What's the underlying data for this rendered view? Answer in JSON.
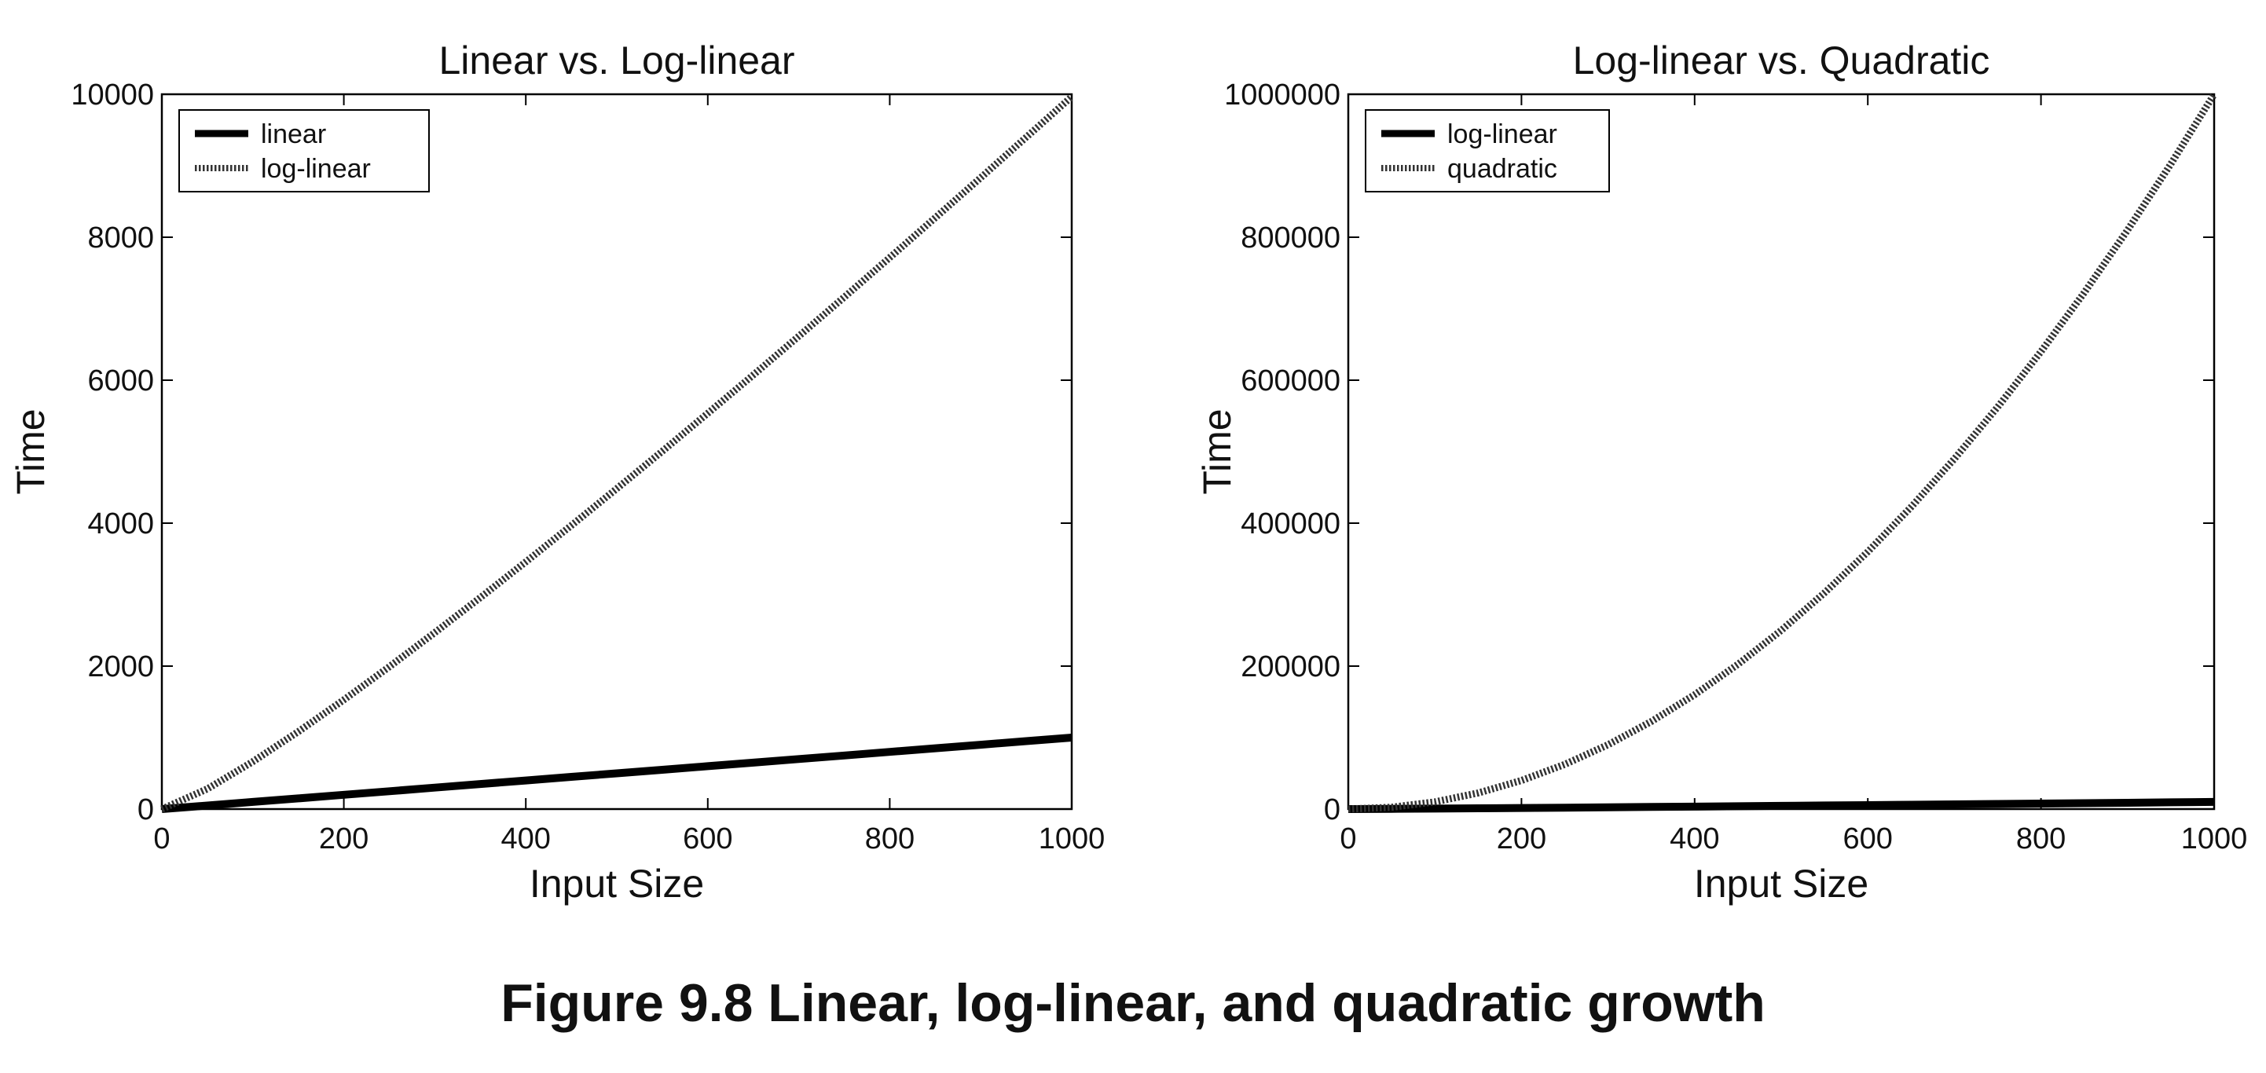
{
  "caption": "Figure 9.8 Linear, log-linear, and quadratic growth",
  "chart_data": [
    {
      "type": "line",
      "title": "Linear vs. Log-linear",
      "xlabel": "Input Size",
      "ylabel": "Time",
      "xlim": [
        0,
        1000
      ],
      "ylim": [
        0,
        10000
      ],
      "xticks": [
        "0",
        "200",
        "400",
        "600",
        "800",
        "1000"
      ],
      "yticks": [
        "0",
        "2000",
        "4000",
        "6000",
        "8000",
        "10000"
      ],
      "legend_position": "top-left",
      "grid": false,
      "x": [
        0,
        50,
        100,
        150,
        200,
        250,
        300,
        350,
        400,
        450,
        500,
        550,
        600,
        650,
        700,
        750,
        800,
        850,
        900,
        950,
        1000
      ],
      "series": [
        {
          "name": "linear",
          "style": "solid",
          "values": [
            0,
            50,
            100,
            150,
            200,
            250,
            300,
            350,
            400,
            450,
            500,
            550,
            600,
            650,
            700,
            750,
            800,
            850,
            900,
            950,
            1000
          ]
        },
        {
          "name": "log-linear",
          "style": "dotted",
          "values": [
            0,
            282,
            664,
            1084,
            1529,
            1991,
            2469,
            2958,
            3458,
            3967,
            4483,
            5006,
            5537,
            6073,
            6615,
            7162,
            7715,
            8272,
            8833,
            9399,
            9966
          ]
        }
      ]
    },
    {
      "type": "line",
      "title": "Log-linear vs. Quadratic",
      "xlabel": "Input Size",
      "ylabel": "Time",
      "xlim": [
        0,
        1000
      ],
      "ylim": [
        0,
        1000000
      ],
      "xticks": [
        "0",
        "200",
        "400",
        "600",
        "800",
        "1000"
      ],
      "yticks": [
        "0",
        "200000",
        "400000",
        "600000",
        "800000",
        "1000000"
      ],
      "legend_position": "top-left",
      "grid": false,
      "x": [
        0,
        50,
        100,
        150,
        200,
        250,
        300,
        350,
        400,
        450,
        500,
        550,
        600,
        650,
        700,
        750,
        800,
        850,
        900,
        950,
        1000
      ],
      "series": [
        {
          "name": "log-linear",
          "style": "solid",
          "values": [
            0,
            282,
            664,
            1084,
            1529,
            1991,
            2469,
            2958,
            3458,
            3967,
            4483,
            5006,
            5537,
            6073,
            6615,
            7162,
            7715,
            8272,
            8833,
            9399,
            9966
          ]
        },
        {
          "name": "quadratic",
          "style": "dotted",
          "values": [
            0,
            2500,
            10000,
            22500,
            40000,
            62500,
            90000,
            122500,
            160000,
            202500,
            250000,
            302500,
            360000,
            422500,
            490000,
            562500,
            640000,
            722500,
            810000,
            902500,
            1000000
          ]
        }
      ]
    }
  ]
}
